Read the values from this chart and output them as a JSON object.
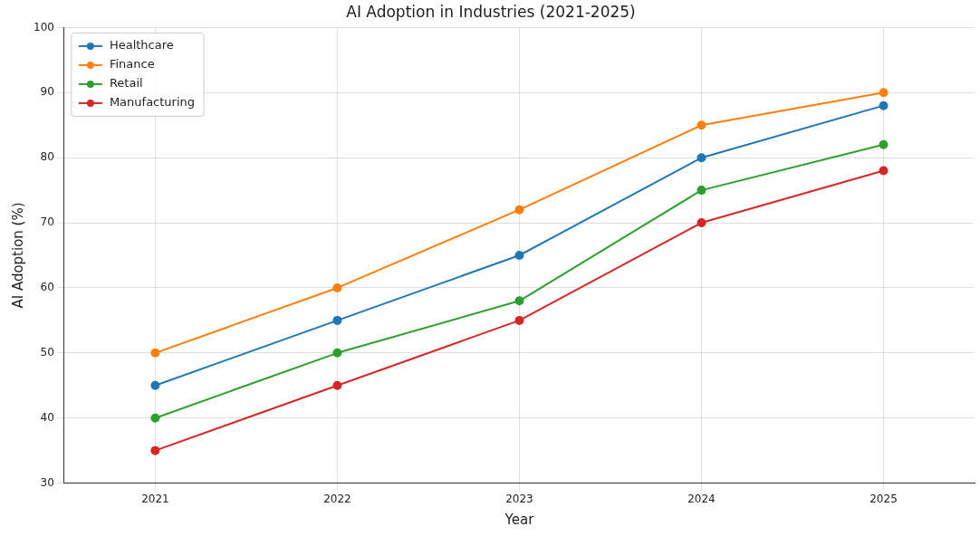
{
  "chart_data": {
    "type": "line",
    "title": "AI Adoption in Industries (2021-2025)",
    "xlabel": "Year",
    "ylabel": "AI Adoption (%)",
    "categories": [
      "2021",
      "2022",
      "2023",
      "2024",
      "2025"
    ],
    "series": [
      {
        "name": "Healthcare",
        "color": "#1f77b4",
        "values": [
          45,
          55,
          65,
          80,
          88
        ]
      },
      {
        "name": "Finance",
        "color": "#ff7f0e",
        "values": [
          50,
          60,
          72,
          85,
          90
        ]
      },
      {
        "name": "Retail",
        "color": "#2ca02c",
        "values": [
          40,
          50,
          58,
          75,
          82
        ]
      },
      {
        "name": "Manufacturing",
        "color": "#d62728",
        "values": [
          35,
          45,
          55,
          70,
          78
        ]
      }
    ],
    "ylim": [
      30,
      100
    ],
    "yticks": [
      30,
      40,
      50,
      60,
      70,
      80,
      90,
      100
    ],
    "grid": true,
    "legend": "top left",
    "marker": "circle",
    "line_style": "solid"
  }
}
